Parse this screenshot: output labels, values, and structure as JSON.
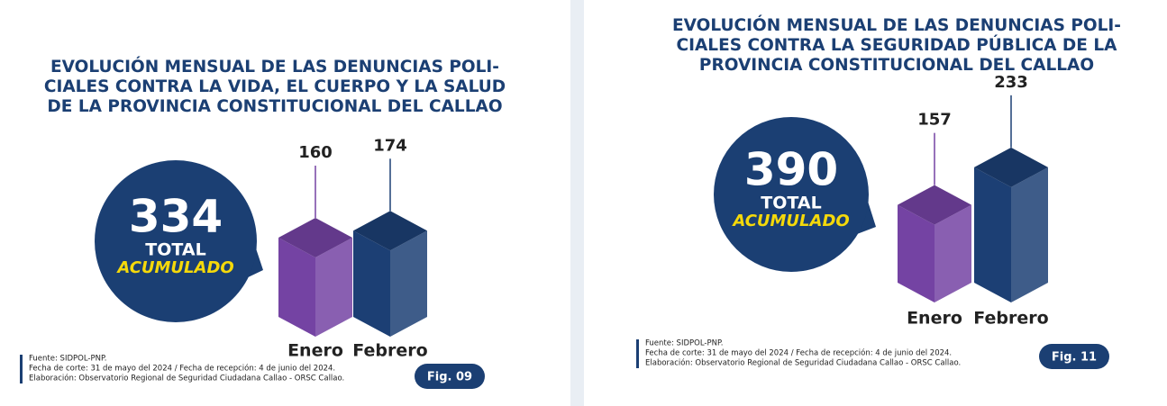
{
  "chart_data": [
    {
      "type": "bar",
      "title": [
        "EVOLUCIÓN MENSUAL DE LAS DENUNCIAS POLI-",
        "CIALES CONTRA LA VIDA, EL CUERPO Y LA SALUD",
        "DE LA PROVINCIA CONSTITUCIONAL DEL CALLAO"
      ],
      "total": 334,
      "total_label": "TOTAL",
      "total_sub": "ACUMULADO",
      "categories": [
        "Enero",
        "Febrero"
      ],
      "values": [
        160,
        174
      ],
      "colors": [
        "#7443a3",
        "#1c3f74"
      ],
      "source": [
        "Fuente: SIDPOL-PNP.",
        "Fecha de corte: 31 de mayo del 2024 / Fecha de recepción: 4 de junio del 2024.",
        "Elaboración: Observatorio Regional de Seguridad Ciudadana Callao - ORSC Callao."
      ],
      "figure": "Fig. 09"
    },
    {
      "type": "bar",
      "title": [
        "EVOLUCIÓN MENSUAL DE LAS DENUNCIAS POLI-",
        "CIALES CONTRA LA SEGURIDAD PÚBLICA DE LA",
        "PROVINCIA CONSTITUCIONAL DEL CALLAO"
      ],
      "total": 390,
      "total_label": "TOTAL",
      "total_sub": "ACUMULADO",
      "categories": [
        "Enero",
        "Febrero"
      ],
      "values": [
        157,
        233
      ],
      "colors": [
        "#7443a3",
        "#1c3f74"
      ],
      "source": [
        "Fuente: SIDPOL-PNP.",
        "Fecha de corte: 31 de mayo del 2024 / Fecha de recepción: 4 de junio del 2024.",
        "Elaboración: Observatorio Regional de Seguridad Ciudadana Callao - ORSC Callao."
      ],
      "figure": "Fig. 11"
    }
  ]
}
